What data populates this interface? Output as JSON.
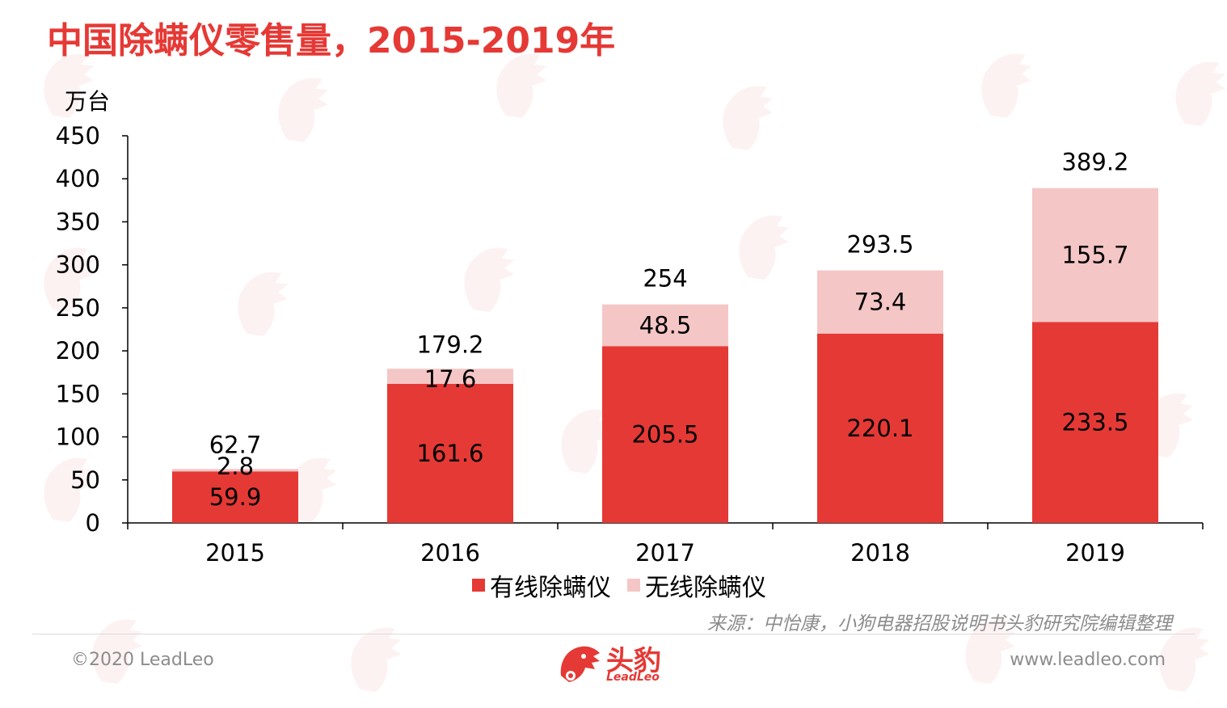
{
  "title": "中国除螨仪零售量，2015-2019年",
  "unit": "万台",
  "colors": {
    "accent": "#e53935",
    "wired": "#e53935",
    "wireless": "#f5c6c6",
    "footer_text": "#8c8c8c"
  },
  "chart_data": {
    "type": "bar",
    "stacked": true,
    "categories": [
      "2015",
      "2016",
      "2017",
      "2018",
      "2019"
    ],
    "series": [
      {
        "name": "有线除螨仪",
        "values": [
          59.9,
          161.6,
          205.5,
          220.1,
          233.5
        ],
        "value_labels": [
          "59.9",
          "161.6",
          "205.5",
          "220.1",
          "233.5"
        ]
      },
      {
        "name": "无线除螨仪",
        "values": [
          2.8,
          17.6,
          48.5,
          73.4,
          155.7
        ],
        "value_labels": [
          "2.8",
          "17.6",
          "48.5",
          "73.4",
          "155.7"
        ]
      }
    ],
    "totals": [
      62.7,
      179.2,
      254,
      293.5,
      389.2
    ],
    "total_labels": [
      "62.7",
      "179.2",
      "254",
      "293.5",
      "389.2"
    ],
    "ylabel": "万台",
    "ylim": [
      0,
      450
    ],
    "yticks": [
      "0",
      "50",
      "100",
      "150",
      "200",
      "250",
      "300",
      "350",
      "400",
      "450"
    ],
    "grid": false,
    "legend": "bottom-center"
  },
  "legend": {
    "wired": "有线除螨仪",
    "wireless": "无线除螨仪"
  },
  "source": "来源：中怡康，小狗电器招股说明书头豹研究院编辑整理",
  "footer": {
    "copyright": "©2020 LeadLeo",
    "logo_text": "头豹",
    "logo_sub": "LeadLeo",
    "website": "www.leadleo.com"
  }
}
